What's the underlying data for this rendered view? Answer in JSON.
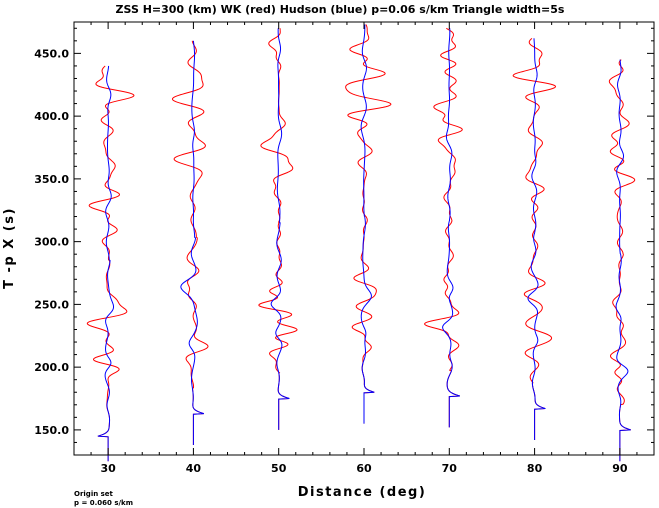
{
  "chart_data": {
    "type": "line",
    "title": "ZSS H=300 (km) WK (red) Hudson (blue) p=0.06 s/km Triangle width=5s",
    "xlabel": "Distance (deg)",
    "ylabel": "T -p X (s)",
    "xlim": [
      26,
      94
    ],
    "ylim": [
      130,
      475
    ],
    "xticks": [
      "30",
      "40",
      "50",
      "60",
      "70",
      "80",
      "90"
    ],
    "yticks": [
      "150.0",
      "200.0",
      "250.0",
      "300.0",
      "350.0",
      "400.0",
      "450.0"
    ],
    "legend": [
      {
        "name": "WK",
        "color": "#ff0000"
      },
      {
        "name": "Hudson",
        "color": "#0000ff"
      }
    ],
    "traces": [
      {
        "distance": 30,
        "t_start": 125,
        "t_end": 440,
        "first_arrival": 145,
        "polarity": -1
      },
      {
        "distance": 40,
        "t_start": 138,
        "t_end": 460,
        "first_arrival": 163,
        "polarity": 1
      },
      {
        "distance": 50,
        "t_start": 150,
        "t_end": 470,
        "first_arrival": 175,
        "polarity": 1
      },
      {
        "distance": 60,
        "t_start": 155,
        "t_end": 473,
        "first_arrival": 180,
        "polarity": 1
      },
      {
        "distance": 70,
        "t_start": 152,
        "t_end": 470,
        "first_arrival": 177,
        "polarity": 1
      },
      {
        "distance": 80,
        "t_start": 142,
        "t_end": 462,
        "first_arrival": 167,
        "polarity": 1
      },
      {
        "distance": 90,
        "t_start": 125,
        "t_end": 445,
        "first_arrival": 150,
        "polarity": 1
      }
    ],
    "grid": false
  },
  "footer": {
    "line1": "Origin set",
    "line2": "p = 0.060 s/km"
  }
}
